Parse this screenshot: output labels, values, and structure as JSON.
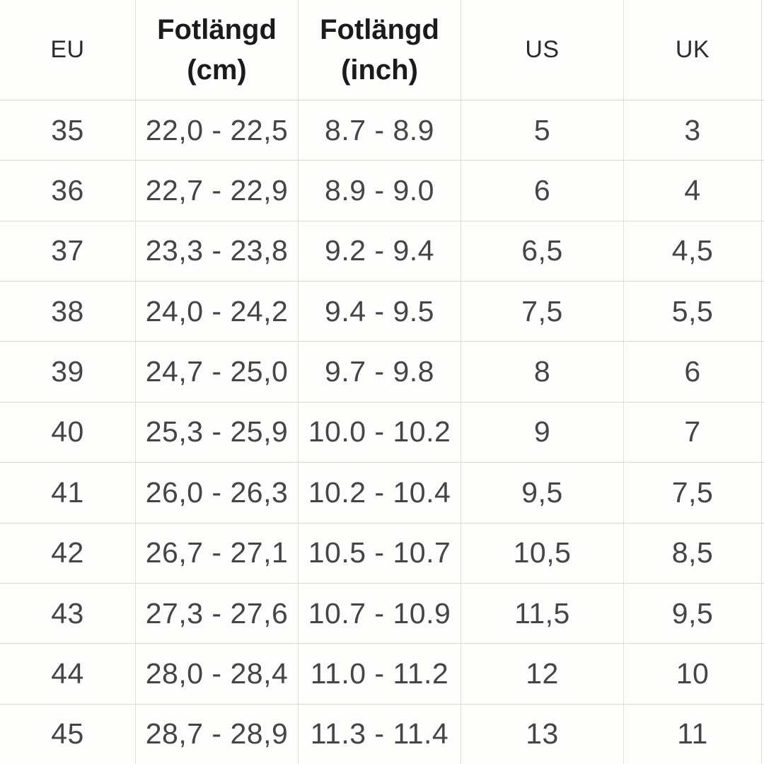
{
  "chart_data": {
    "type": "table",
    "title": "",
    "columns": [
      {
        "key": "eu",
        "label": "EU",
        "sublabel": ""
      },
      {
        "key": "cm",
        "label": "Fotlängd",
        "sublabel": "(cm)"
      },
      {
        "key": "inch",
        "label": "Fotlängd",
        "sublabel": "(inch)"
      },
      {
        "key": "us",
        "label": "US",
        "sublabel": ""
      },
      {
        "key": "uk",
        "label": "UK",
        "sublabel": ""
      }
    ],
    "rows": [
      [
        "35",
        "22,0 - 22,5",
        "8.7 - 8.9",
        "5",
        "3"
      ],
      [
        "36",
        "22,7 - 22,9",
        "8.9 - 9.0",
        "6",
        "4"
      ],
      [
        "37",
        "23,3 - 23,8",
        "9.2 - 9.4",
        "6,5",
        "4,5"
      ],
      [
        "38",
        "24,0 - 24,2",
        "9.4 - 9.5",
        "7,5",
        "5,5"
      ],
      [
        "39",
        "24,7 - 25,0",
        "9.7 - 9.8",
        "8",
        "6"
      ],
      [
        "40",
        "25,3 - 25,9",
        "10.0 - 10.2",
        "9",
        "7"
      ],
      [
        "41",
        "26,0 - 26,3",
        "10.2 - 10.4",
        "9,5",
        "7,5"
      ],
      [
        "42",
        "26,7 - 27,1",
        "10.5 - 10.7",
        "10,5",
        "8,5"
      ],
      [
        "43",
        "27,3 - 27,6",
        "10.7 - 10.9",
        "11,5",
        "9,5"
      ],
      [
        "44",
        "28,0 - 28,4",
        "11.0 - 11.2",
        "12",
        "10"
      ],
      [
        "45",
        "28,7 - 28,9",
        "11.3 - 11.4",
        "13",
        "11"
      ]
    ],
    "layout_hints": {
      "grid": true,
      "header_bold_columns": [
        "cm",
        "inch"
      ],
      "decimal_style_cm": "comma",
      "decimal_style_inch": "dot"
    }
  },
  "colors": {
    "background": "#fdfdfc",
    "grid_line": "#dcdad7",
    "body_text": "#454545",
    "header_text": "#1b1b1b"
  }
}
